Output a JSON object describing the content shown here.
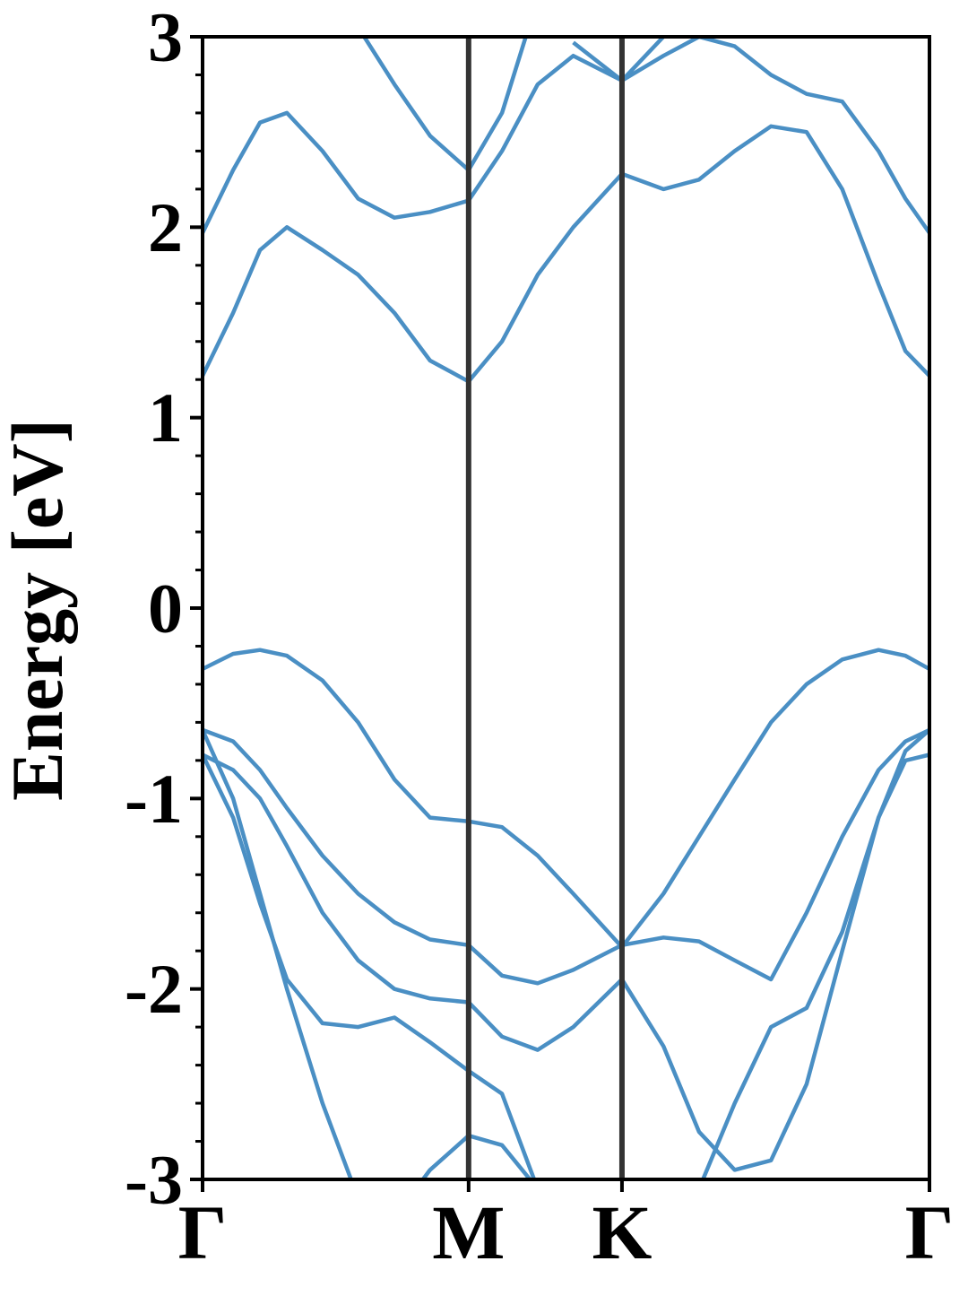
{
  "chart_data": {
    "type": "line",
    "ylabel": "Energy [eV]",
    "x": [
      0,
      0.042,
      0.079,
      0.116,
      0.165,
      0.214,
      0.264,
      0.313,
      0.366,
      0.412,
      0.461,
      0.51,
      0.577,
      0.634,
      0.683,
      0.732,
      0.782,
      0.831,
      0.88,
      0.93,
      0.967,
      1
    ],
    "color": "#4a8fc4",
    "series": [
      {
        "values": [
          1.22,
          1.55,
          1.88,
          2.0,
          1.88,
          1.75,
          1.55,
          1.3,
          1.19,
          1.4,
          1.75,
          2.0,
          2.28,
          2.2,
          2.25,
          2.4,
          2.53,
          2.5,
          2.2,
          1.7,
          1.35,
          1.22
        ]
      },
      {
        "values": [
          1.97,
          2.3,
          2.55,
          2.6,
          2.4,
          2.15,
          2.05,
          2.08,
          2.14,
          2.4,
          2.75,
          2.9,
          2.77,
          2.9,
          3.0,
          2.95,
          2.8,
          2.7,
          2.66,
          2.4,
          2.15,
          1.97
        ]
      },
      {
        "values": [
          null,
          null,
          null,
          null,
          3.3,
          3.05,
          2.75,
          2.48,
          2.3,
          2.6,
          3.2,
          null,
          null,
          null,
          null,
          null,
          null,
          null,
          null,
          null,
          null,
          null
        ]
      },
      {
        "values": [
          null,
          null,
          null,
          null,
          null,
          null,
          null,
          null,
          null,
          null,
          null,
          2.97,
          2.77,
          3.0,
          3.2,
          null,
          null,
          null,
          null,
          null,
          null,
          null
        ]
      },
      {
        "values": [
          -0.32,
          -0.24,
          -0.22,
          -0.25,
          -0.38,
          -0.6,
          -0.9,
          -1.1,
          -1.12,
          -1.15,
          -1.3,
          -1.5,
          -1.78,
          -1.5,
          -1.2,
          -0.9,
          -0.6,
          -0.4,
          -0.27,
          -0.22,
          -0.25,
          -0.32
        ]
      },
      {
        "values": [
          -0.64,
          -0.7,
          -0.85,
          -1.05,
          -1.3,
          -1.5,
          -1.65,
          -1.74,
          -1.77,
          -1.93,
          -1.97,
          -1.9,
          -1.77,
          -1.73,
          -1.75,
          -1.85,
          -1.95,
          -1.6,
          -1.2,
          -0.85,
          -0.7,
          -0.64
        ]
      },
      {
        "values": [
          -0.64,
          -1.0,
          -1.5,
          -2.0,
          -2.6,
          -3.1,
          null,
          null,
          null,
          null,
          null,
          null,
          null,
          null,
          -3.05,
          -2.6,
          -2.2,
          -2.1,
          -1.7,
          -1.1,
          -0.75,
          -0.64
        ]
      },
      {
        "values": [
          -0.77,
          -0.85,
          -1.0,
          -1.25,
          -1.6,
          -1.85,
          -2.0,
          -2.05,
          -2.07,
          -2.25,
          -2.32,
          -2.2,
          -1.95,
          -2.3,
          -2.75,
          -2.95,
          -2.9,
          -2.5,
          -1.8,
          -1.1,
          -0.8,
          -0.77
        ]
      },
      {
        "values": [
          -0.77,
          -1.1,
          -1.55,
          -1.95,
          -2.18,
          -2.2,
          -2.15,
          -2.28,
          -2.43,
          -2.55,
          -3.05,
          null,
          null,
          null,
          null,
          null,
          null,
          null,
          null,
          null,
          null,
          null
        ]
      },
      {
        "values": [
          null,
          null,
          null,
          null,
          null,
          null,
          -3.2,
          -2.95,
          -2.77,
          -2.82,
          -3.05,
          null,
          null,
          null,
          null,
          null,
          null,
          null,
          null,
          null,
          null,
          null
        ]
      }
    ],
    "xlim": [
      0,
      1
    ],
    "xticks": [
      {
        "value": 0,
        "label": "Γ"
      },
      {
        "value": 0.366,
        "label": "M"
      },
      {
        "value": 0.577,
        "label": "K"
      },
      {
        "value": 1,
        "label": "Γ"
      }
    ],
    "vlines_at_xticks": true,
    "ylim": [
      -3,
      3
    ],
    "yticks": [
      -3,
      -2,
      -1,
      0,
      1,
      2,
      3
    ],
    "yminorticks": [
      -2.8,
      -2.6,
      -2.4,
      -2.2,
      -1.8,
      -1.6,
      -1.4,
      -1.2,
      -0.8,
      -0.6,
      -0.4,
      -0.2,
      0.2,
      0.4,
      0.6,
      0.8,
      1.2,
      1.4,
      1.6,
      1.8,
      2.2,
      2.4,
      2.6,
      2.8
    ]
  }
}
